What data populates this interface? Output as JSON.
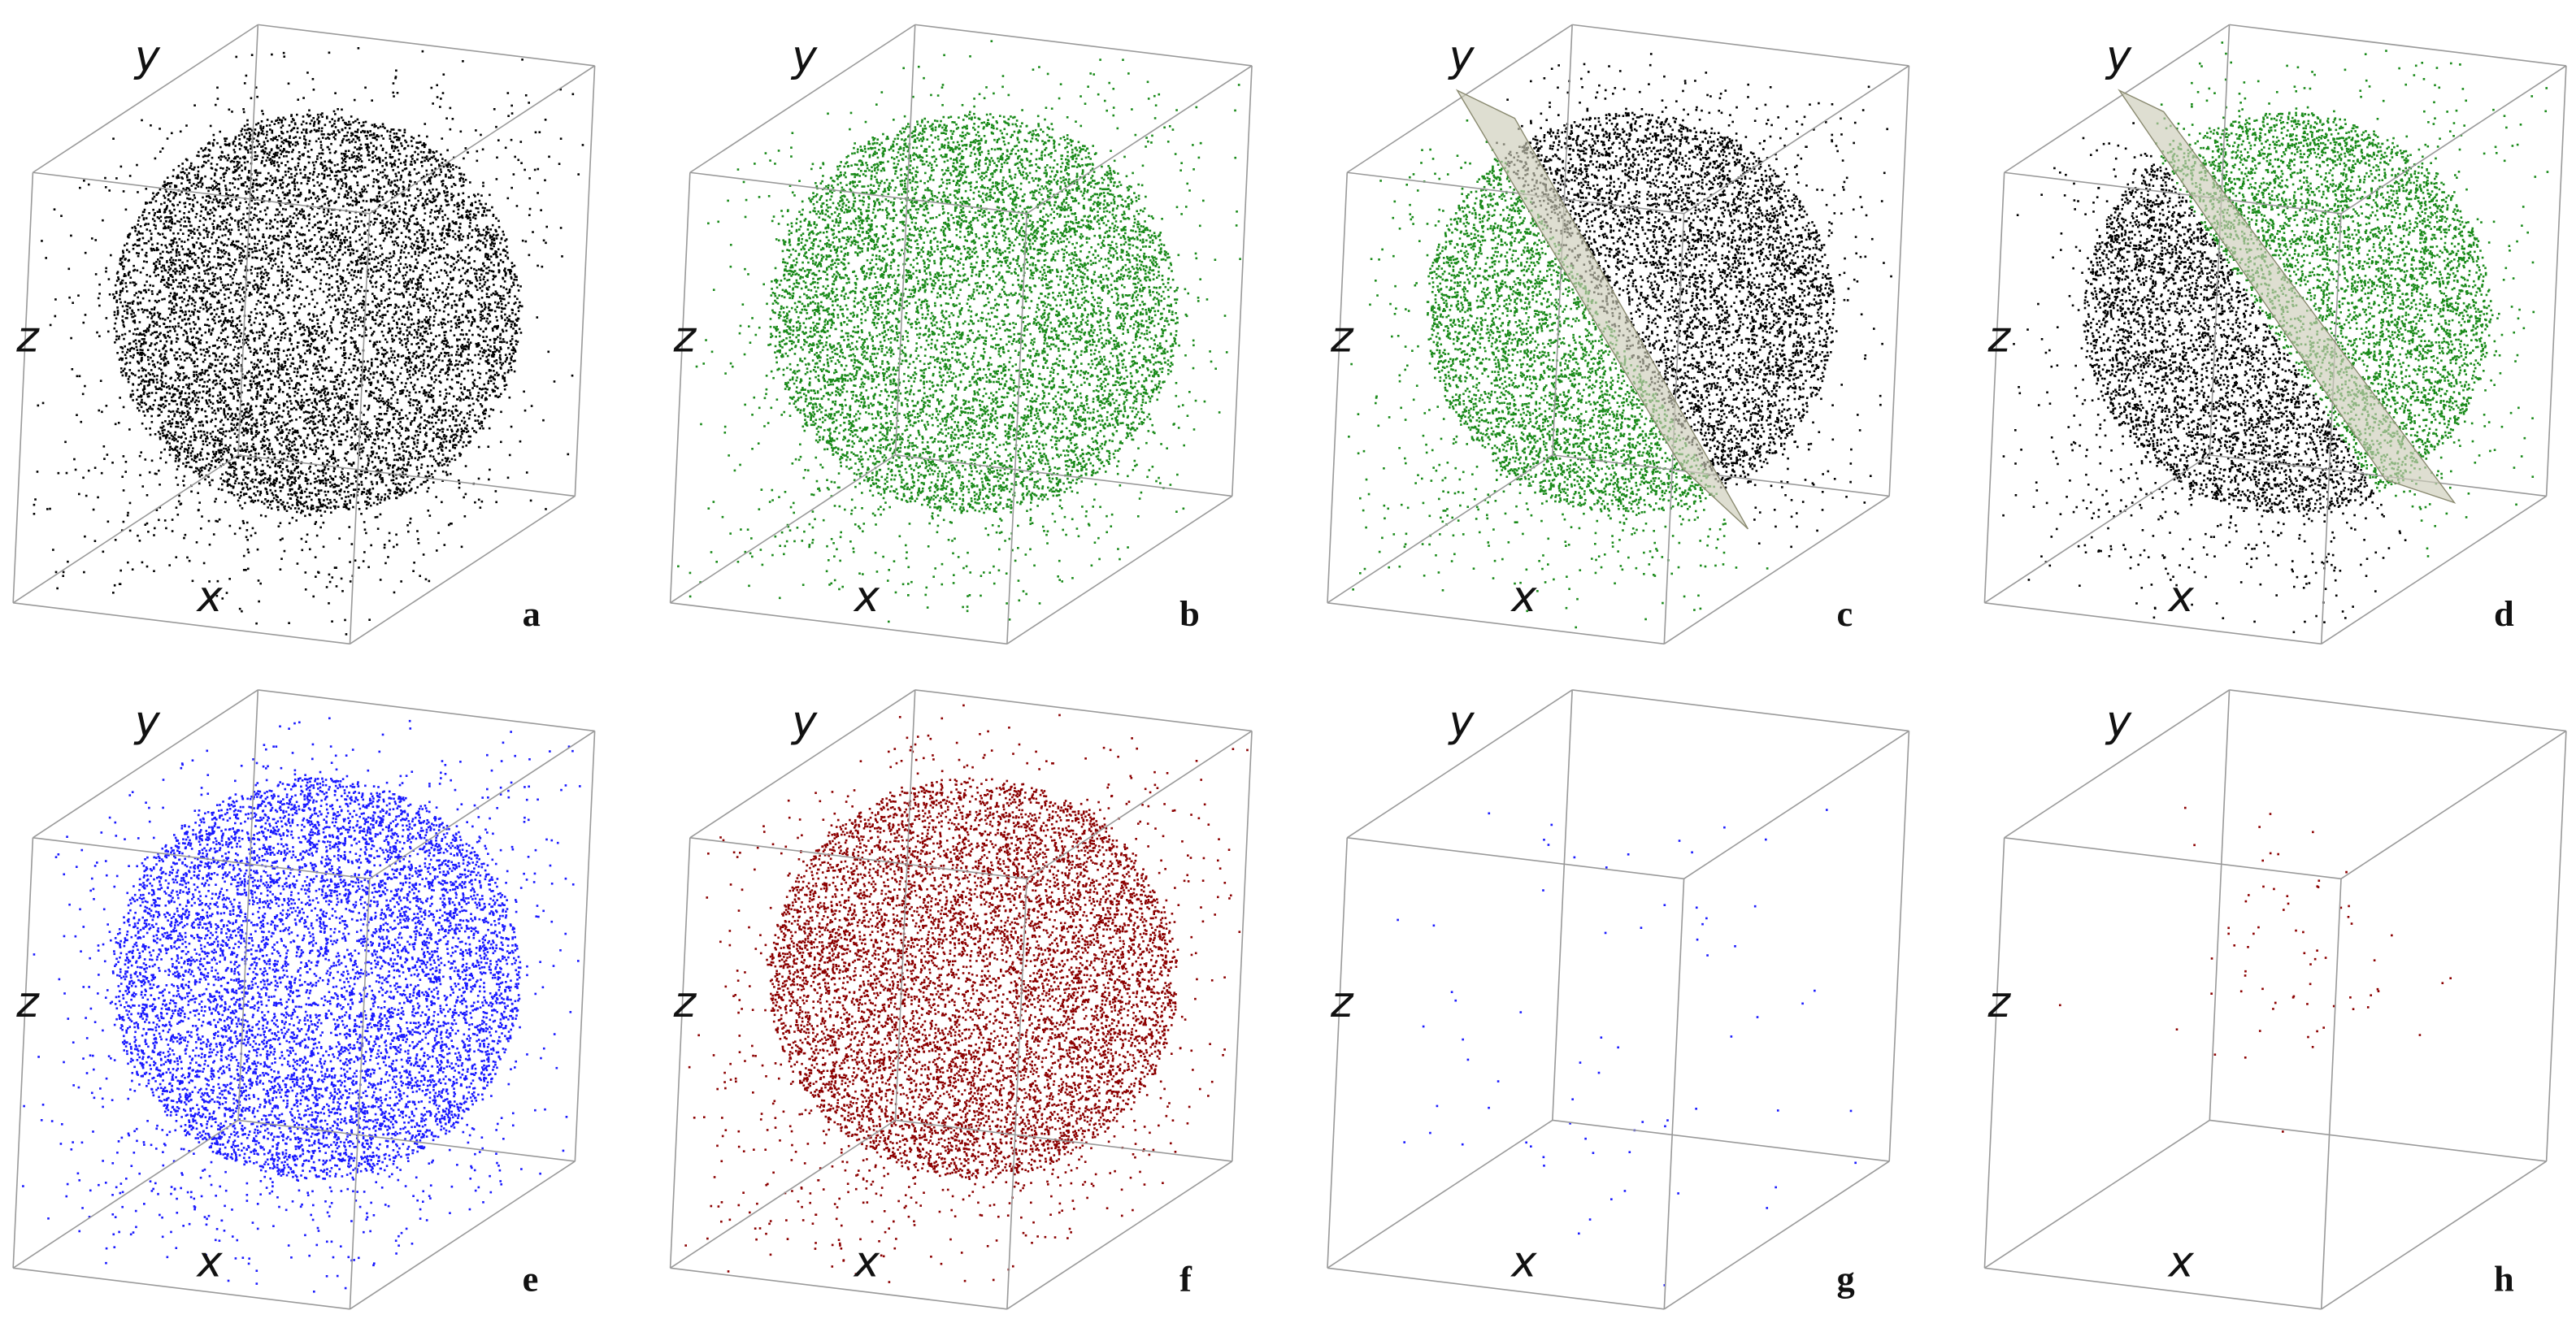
{
  "panels": [
    {
      "letter": "a",
      "axes": {
        "x": "x",
        "y": "y",
        "z": "z"
      },
      "colors": [
        "#000000"
      ],
      "plane": false,
      "sparse": false
    },
    {
      "letter": "b",
      "axes": {
        "x": "x",
        "y": "y",
        "z": "z"
      },
      "colors": [
        "#1a8a1a"
      ],
      "plane": false,
      "sparse": false
    },
    {
      "letter": "c",
      "axes": {
        "x": "x",
        "y": "y",
        "z": "z"
      },
      "colors": [
        "#000000",
        "#1a8a1a"
      ],
      "plane": true,
      "sparse": false
    },
    {
      "letter": "d",
      "axes": {
        "x": "x",
        "y": "y",
        "z": "z"
      },
      "colors": [
        "#1a8a1a",
        "#000000"
      ],
      "plane": true,
      "sparse": false
    },
    {
      "letter": "e",
      "axes": {
        "x": "x",
        "y": "y",
        "z": "z"
      },
      "colors": [
        "#1a1aff"
      ],
      "plane": false,
      "sparse": false
    },
    {
      "letter": "f",
      "axes": {
        "x": "x",
        "y": "y",
        "z": "z"
      },
      "colors": [
        "#8b0000"
      ],
      "plane": false,
      "sparse": false
    },
    {
      "letter": "g",
      "axes": {
        "x": "x",
        "y": "y",
        "z": "z"
      },
      "colors": [
        "#1a1aff"
      ],
      "plane": false,
      "sparse": true
    },
    {
      "letter": "h",
      "axes": {
        "x": "x",
        "y": "y",
        "z": "z"
      },
      "colors": [
        "#8b0000"
      ],
      "plane": false,
      "sparse": true
    }
  ]
}
